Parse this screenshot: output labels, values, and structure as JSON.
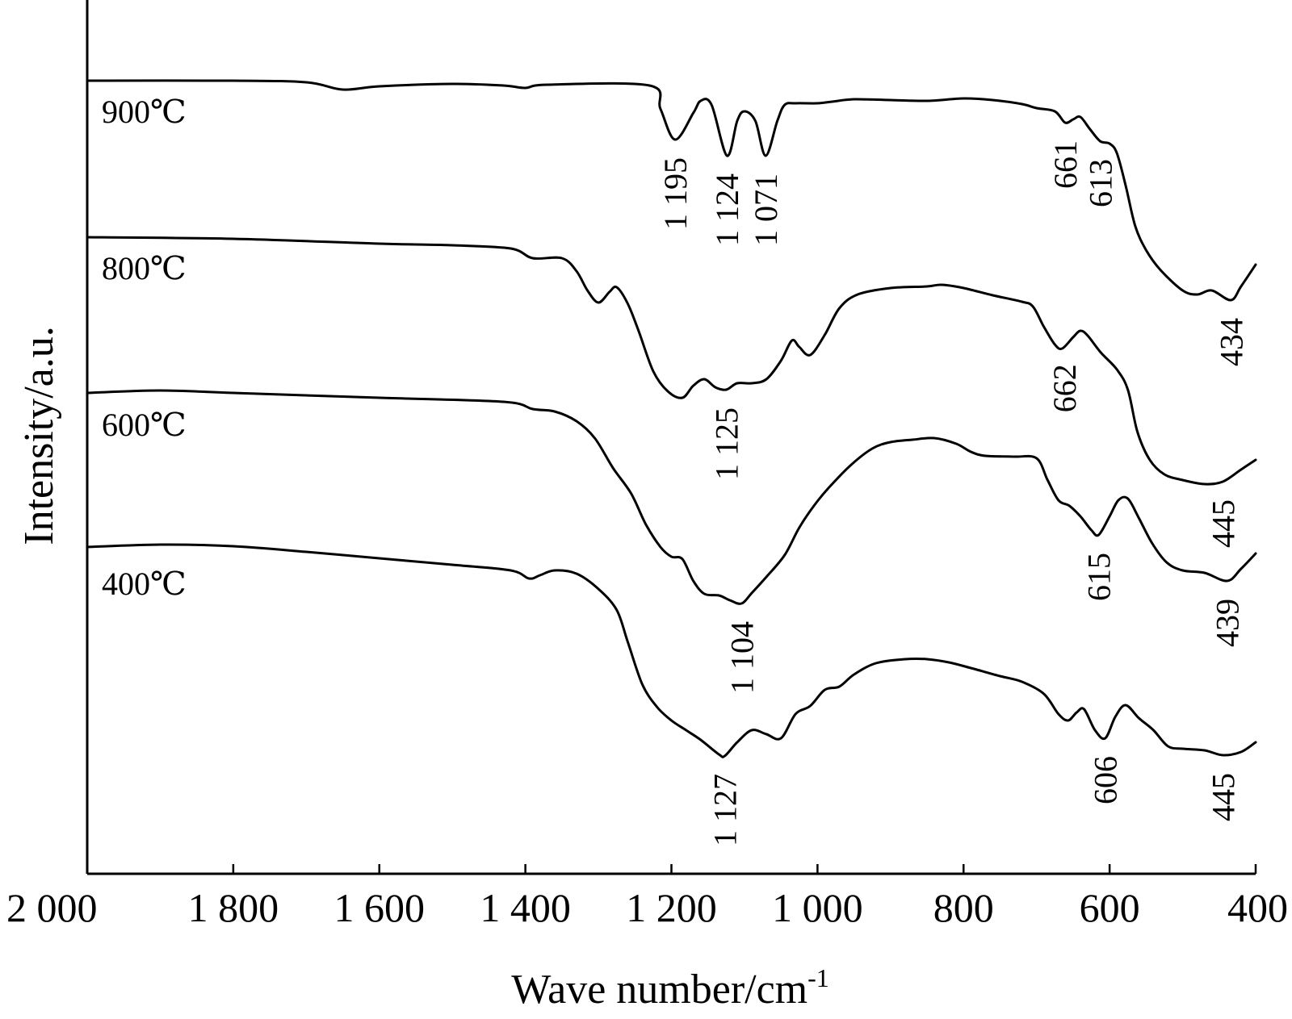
{
  "chart_data": {
    "type": "line",
    "title": "",
    "xlabel": "Wave number/cm",
    "xlabel_superscript": "-1",
    "ylabel": "Intensity/a.u.",
    "xlim": [
      2000,
      400
    ],
    "x_reversed": true,
    "xticks": [
      2000,
      1800,
      1600,
      1400,
      1200,
      1000,
      800,
      600,
      400
    ],
    "xtick_labels": [
      "2 000",
      "1 800",
      "1 600",
      "1 400",
      "1 200",
      "1 000",
      "800",
      "600",
      "400"
    ],
    "y_ticks_shown": false,
    "grid": false,
    "legend": "none (series labelled inline)",
    "series": [
      {
        "name": "900℃",
        "points": [
          [
            2000,
            100
          ],
          [
            1800,
            100
          ],
          [
            1700,
            102
          ],
          [
            1650,
            111
          ],
          [
            1600,
            107
          ],
          [
            1500,
            104
          ],
          [
            1430,
            106
          ],
          [
            1400,
            109
          ],
          [
            1370,
            105
          ],
          [
            1230,
            106
          ],
          [
            1215,
            135
          ],
          [
            1195,
            173
          ],
          [
            1170,
            140
          ],
          [
            1160,
            125
          ],
          [
            1145,
            130
          ],
          [
            1124,
            193
          ],
          [
            1110,
            150
          ],
          [
            1100,
            138
          ],
          [
            1085,
            150
          ],
          [
            1071,
            193
          ],
          [
            1055,
            150
          ],
          [
            1045,
            130
          ],
          [
            1030,
            128
          ],
          [
            1000,
            128
          ],
          [
            980,
            126
          ],
          [
            950,
            123
          ],
          [
            900,
            124
          ],
          [
            850,
            125
          ],
          [
            800,
            122
          ],
          [
            760,
            124
          ],
          [
            720,
            129
          ],
          [
            700,
            134
          ],
          [
            675,
            138
          ],
          [
            661,
            152
          ],
          [
            650,
            148
          ],
          [
            640,
            145
          ],
          [
            627,
            160
          ],
          [
            613,
            175
          ],
          [
            600,
            178
          ],
          [
            590,
            190
          ],
          [
            578,
            230
          ],
          [
            565,
            280
          ],
          [
            550,
            310
          ],
          [
            530,
            335
          ],
          [
            500,
            360
          ],
          [
            480,
            365
          ],
          [
            460,
            360
          ],
          [
            434,
            372
          ],
          [
            420,
            355
          ],
          [
            400,
            328
          ]
        ],
        "peaks": [
          1195,
          1124,
          1071,
          661,
          613,
          434
        ]
      },
      {
        "name": "800℃",
        "points": [
          [
            2000,
            294
          ],
          [
            1800,
            296
          ],
          [
            1600,
            302
          ],
          [
            1500,
            304
          ],
          [
            1420,
            308
          ],
          [
            1390,
            320
          ],
          [
            1350,
            320
          ],
          [
            1330,
            336
          ],
          [
            1315,
            360
          ],
          [
            1300,
            375
          ],
          [
            1285,
            362
          ],
          [
            1275,
            356
          ],
          [
            1260,
            376
          ],
          [
            1245,
            410
          ],
          [
            1225,
            460
          ],
          [
            1205,
            485
          ],
          [
            1185,
            493
          ],
          [
            1170,
            478
          ],
          [
            1155,
            470
          ],
          [
            1140,
            480
          ],
          [
            1125,
            483
          ],
          [
            1110,
            475
          ],
          [
            1090,
            475
          ],
          [
            1070,
            470
          ],
          [
            1050,
            447
          ],
          [
            1035,
            422
          ],
          [
            1025,
            430
          ],
          [
            1010,
            440
          ],
          [
            990,
            415
          ],
          [
            970,
            382
          ],
          [
            945,
            365
          ],
          [
            900,
            357
          ],
          [
            850,
            355
          ],
          [
            830,
            353
          ],
          [
            800,
            357
          ],
          [
            760,
            366
          ],
          [
            720,
            374
          ],
          [
            705,
            380
          ],
          [
            690,
            405
          ],
          [
            675,
            427
          ],
          [
            665,
            432
          ],
          [
            650,
            418
          ],
          [
            640,
            410
          ],
          [
            630,
            416
          ],
          [
            612,
            437
          ],
          [
            590,
            458
          ],
          [
            575,
            483
          ],
          [
            562,
            535
          ],
          [
            545,
            570
          ],
          [
            525,
            588
          ],
          [
            500,
            595
          ],
          [
            470,
            600
          ],
          [
            445,
            597
          ],
          [
            420,
            582
          ],
          [
            400,
            570
          ]
        ],
        "peaks": [
          1125,
          662,
          445
        ]
      },
      {
        "name": "600℃",
        "points": [
          [
            2000,
            487
          ],
          [
            1900,
            484
          ],
          [
            1800,
            487
          ],
          [
            1600,
            493
          ],
          [
            1430,
            498
          ],
          [
            1390,
            507
          ],
          [
            1360,
            510
          ],
          [
            1330,
            522
          ],
          [
            1305,
            543
          ],
          [
            1280,
            580
          ],
          [
            1255,
            612
          ],
          [
            1235,
            650
          ],
          [
            1215,
            678
          ],
          [
            1200,
            690
          ],
          [
            1185,
            693
          ],
          [
            1170,
            720
          ],
          [
            1155,
            736
          ],
          [
            1135,
            738
          ],
          [
            1120,
            744
          ],
          [
            1104,
            748
          ],
          [
            1090,
            735
          ],
          [
            1070,
            715
          ],
          [
            1045,
            688
          ],
          [
            1025,
            654
          ],
          [
            1005,
            627
          ],
          [
            985,
            605
          ],
          [
            955,
            577
          ],
          [
            925,
            556
          ],
          [
            900,
            548
          ],
          [
            870,
            545
          ],
          [
            840,
            543
          ],
          [
            810,
            550
          ],
          [
            790,
            560
          ],
          [
            770,
            565
          ],
          [
            730,
            566
          ],
          [
            700,
            568
          ],
          [
            685,
            595
          ],
          [
            670,
            620
          ],
          [
            655,
            627
          ],
          [
            640,
            640
          ],
          [
            625,
            657
          ],
          [
            615,
            663
          ],
          [
            600,
            640
          ],
          [
            588,
            620
          ],
          [
            575,
            618
          ],
          [
            560,
            642
          ],
          [
            542,
            673
          ],
          [
            522,
            697
          ],
          [
            500,
            707
          ],
          [
            470,
            710
          ],
          [
            439,
            720
          ],
          [
            420,
            705
          ],
          [
            400,
            686
          ]
        ],
        "peaks": [
          1104,
          615,
          439
        ]
      },
      {
        "name": "400℃",
        "points": [
          [
            2000,
            678
          ],
          [
            1900,
            675
          ],
          [
            1800,
            677
          ],
          [
            1700,
            684
          ],
          [
            1600,
            692
          ],
          [
            1500,
            700
          ],
          [
            1420,
            707
          ],
          [
            1395,
            717
          ],
          [
            1380,
            713
          ],
          [
            1360,
            707
          ],
          [
            1330,
            711
          ],
          [
            1300,
            730
          ],
          [
            1275,
            756
          ],
          [
            1260,
            795
          ],
          [
            1240,
            848
          ],
          [
            1220,
            876
          ],
          [
            1200,
            893
          ],
          [
            1180,
            905
          ],
          [
            1160,
            917
          ],
          [
            1135,
            935
          ],
          [
            1127,
            937
          ],
          [
            1110,
            920
          ],
          [
            1090,
            905
          ],
          [
            1070,
            910
          ],
          [
            1050,
            915
          ],
          [
            1030,
            885
          ],
          [
            1010,
            875
          ],
          [
            990,
            855
          ],
          [
            970,
            851
          ],
          [
            950,
            836
          ],
          [
            920,
            822
          ],
          [
            880,
            817
          ],
          [
            850,
            817
          ],
          [
            820,
            821
          ],
          [
            790,
            828
          ],
          [
            750,
            838
          ],
          [
            720,
            845
          ],
          [
            690,
            860
          ],
          [
            670,
            885
          ],
          [
            657,
            893
          ],
          [
            645,
            883
          ],
          [
            635,
            879
          ],
          [
            620,
            905
          ],
          [
            606,
            915
          ],
          [
            592,
            888
          ],
          [
            578,
            874
          ],
          [
            560,
            890
          ],
          [
            540,
            905
          ],
          [
            520,
            925
          ],
          [
            500,
            928
          ],
          [
            470,
            930
          ],
          [
            445,
            936
          ],
          [
            420,
            932
          ],
          [
            400,
            920
          ]
        ],
        "peaks": [
          1127,
          606,
          445
        ]
      }
    ]
  }
}
